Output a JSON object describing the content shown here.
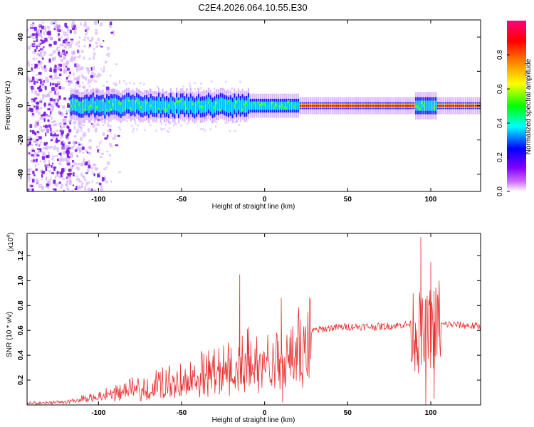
{
  "chart_data": [
    {
      "type": "heatmap",
      "title": "C2E4.2026.064.10.55.E30",
      "xlabel": "Height of straight line (km)",
      "ylabel": "Frequency (Hz)",
      "xlim": [
        -143,
        130
      ],
      "ylim": [
        -50,
        50
      ],
      "xticks": [
        -100,
        -50,
        0,
        50,
        100
      ],
      "yticks": [
        -40,
        -20,
        0,
        20,
        40
      ],
      "colorbar": {
        "label": "Normalized spectral amplitude",
        "range": [
          0,
          1
        ],
        "ticks": [
          "0.0",
          "0.2",
          "0.4",
          "0.6",
          "0.8"
        ],
        "colors": [
          "#ffffff",
          "#cc66ff",
          "#8000ff",
          "#0000ff",
          "#00ffff",
          "#00ff00",
          "#ffff00",
          "#ff8000",
          "#ff0000",
          "#ff0080"
        ]
      },
      "band": {
        "noise_region_x": [
          -143,
          -90
        ],
        "band_start_x": -117,
        "center_freq": 0,
        "half_width_noisy": 6,
        "half_width_steady": 2,
        "steady_from_x": 20,
        "steady_color_level": 0.95,
        "burst_x": [
          90,
          103
        ]
      },
      "colors": {
        "noise": "#7a18e6",
        "band_outer": "#2020ff",
        "band_mid": "#00c8ff",
        "band_inner": "#40ff40",
        "steady": "#e01010",
        "steady_edge": "#ffff20"
      }
    },
    {
      "type": "line",
      "xlabel": "Height of straight line (km)",
      "ylabel": "SNR (10 * v/v)",
      "yscale_label": "(x10",
      "yscale_exp": "4",
      "xlim": [
        -143,
        130
      ],
      "ylim": [
        0,
        1.38
      ],
      "xticks": [
        -100,
        -50,
        0,
        50,
        100
      ],
      "yticks": [
        "0.2",
        "0.4",
        "0.6",
        "0.8",
        "1.0",
        "1.2"
      ],
      "ytick_values": [
        0.2,
        0.4,
        0.6,
        0.8,
        1.0,
        1.2
      ],
      "series": [
        {
          "color": "#e83030",
          "x": [
            -143,
            -130,
            -120,
            -110,
            -100,
            -95,
            -90,
            -85,
            -80,
            -75,
            -70,
            -65,
            -60,
            -55,
            -50,
            -45,
            -40,
            -35,
            -30,
            -25,
            -20,
            -15,
            -10,
            -5,
            0,
            5,
            10,
            15,
            20,
            25,
            30,
            35,
            40,
            50,
            60,
            70,
            80,
            88,
            92,
            96,
            100,
            104,
            110,
            120,
            130
          ],
          "y": [
            0.02,
            0.02,
            0.03,
            0.05,
            0.07,
            0.09,
            0.1,
            0.12,
            0.14,
            0.16,
            0.17,
            0.19,
            0.2,
            0.22,
            0.23,
            0.25,
            0.27,
            0.29,
            0.3,
            0.33,
            0.36,
            0.38,
            0.4,
            0.42,
            0.38,
            0.4,
            0.35,
            0.45,
            0.5,
            0.55,
            0.6,
            0.61,
            0.62,
            0.63,
            0.63,
            0.63,
            0.64,
            0.65,
            0.6,
            0.5,
            0.62,
            0.64,
            0.65,
            0.64,
            0.63
          ],
          "spikes": [
            {
              "x": -15,
              "y": 1.05
            },
            {
              "x": 10,
              "y": 0.86
            },
            {
              "x": 10.8,
              "y": 0.02
            },
            {
              "x": 94,
              "y": 1.35
            },
            {
              "x": 97,
              "y": 0.0
            },
            {
              "x": 100,
              "y": 1.15
            },
            {
              "x": 102,
              "y": 0.05
            },
            {
              "x": 105,
              "y": 1.0
            }
          ]
        }
      ]
    }
  ]
}
